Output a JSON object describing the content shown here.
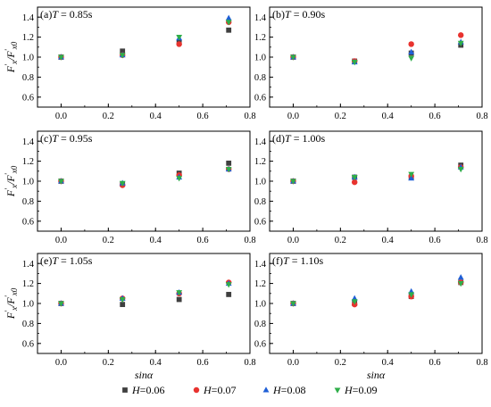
{
  "chart_data": {
    "type": "scatter",
    "panels": [
      {
        "label": "(a)",
        "var": "T",
        "eq": " = 0.85s",
        "series": [
          {
            "name": "H=0.06",
            "y": [
              1.0,
              1.06,
              1.15,
              1.27
            ]
          },
          {
            "name": "H=0.07",
            "y": [
              1.0,
              1.02,
              1.13,
              1.35
            ]
          },
          {
            "name": "H=0.08",
            "y": [
              1.0,
              1.02,
              1.19,
              1.39
            ]
          },
          {
            "name": "H=0.09",
            "y": [
              1.0,
              1.02,
              1.2,
              1.35
            ]
          }
        ]
      },
      {
        "label": "(b)",
        "var": "T",
        "eq": " = 0.90s",
        "series": [
          {
            "name": "H=0.06",
            "y": [
              1.0,
              0.96,
              1.04,
              1.12
            ]
          },
          {
            "name": "H=0.07",
            "y": [
              1.0,
              0.96,
              1.13,
              1.22
            ]
          },
          {
            "name": "H=0.08",
            "y": [
              1.0,
              0.95,
              1.05,
              1.15
            ]
          },
          {
            "name": "H=0.09",
            "y": [
              1.0,
              0.95,
              0.99,
              1.14
            ]
          }
        ]
      },
      {
        "label": "(c)",
        "var": "T",
        "eq": " = 0.95s",
        "series": [
          {
            "name": "H=0.06",
            "y": [
              1.0,
              0.97,
              1.08,
              1.18
            ]
          },
          {
            "name": "H=0.07",
            "y": [
              1.0,
              0.96,
              1.06,
              1.12
            ]
          },
          {
            "name": "H=0.08",
            "y": [
              1.0,
              0.98,
              1.04,
              1.12
            ]
          },
          {
            "name": "H=0.09",
            "y": [
              1.0,
              0.98,
              1.03,
              1.12
            ]
          }
        ]
      },
      {
        "label": "(d)",
        "var": "T",
        "eq": " = 1.00s",
        "series": [
          {
            "name": "H=0.06",
            "y": [
              1.0,
              1.04,
              1.04,
              1.16
            ]
          },
          {
            "name": "H=0.07",
            "y": [
              1.0,
              0.99,
              1.05,
              1.14
            ]
          },
          {
            "name": "H=0.08",
            "y": [
              1.0,
              1.04,
              1.03,
              1.14
            ]
          },
          {
            "name": "H=0.09",
            "y": [
              1.0,
              1.04,
              1.07,
              1.12
            ]
          }
        ]
      },
      {
        "label": "(e)",
        "var": "T",
        "eq": " = 1.05s",
        "series": [
          {
            "name": "H=0.06",
            "y": [
              1.0,
              0.99,
              1.04,
              1.09
            ]
          },
          {
            "name": "H=0.07",
            "y": [
              1.0,
              1.05,
              1.1,
              1.21
            ]
          },
          {
            "name": "H=0.08",
            "y": [
              1.0,
              1.05,
              1.11,
              1.2
            ]
          },
          {
            "name": "H=0.09",
            "y": [
              1.0,
              1.04,
              1.11,
              1.19
            ]
          }
        ]
      },
      {
        "label": "(f)",
        "var": "T",
        "eq": " = 1.10s",
        "series": [
          {
            "name": "H=0.06",
            "y": [
              1.0,
              1.0,
              1.07,
              1.21
            ]
          },
          {
            "name": "H=0.07",
            "y": [
              1.0,
              0.99,
              1.07,
              1.21
            ]
          },
          {
            "name": "H=0.08",
            "y": [
              1.0,
              1.05,
              1.12,
              1.26
            ]
          },
          {
            "name": "H=0.09",
            "y": [
              1.0,
              1.02,
              1.09,
              1.2
            ]
          }
        ]
      }
    ],
    "x": [
      0.0,
      0.26,
      0.5,
      0.71
    ],
    "xlim": [
      -0.1,
      0.8
    ],
    "ylim": [
      0.5,
      1.5
    ],
    "xticks": [
      "0.0",
      "0.2",
      "0.4",
      "0.6",
      "0.8"
    ],
    "yticks": [
      "0.6",
      "0.8",
      "1.0",
      "1.2",
      "1.4"
    ],
    "xlabel": "sinα",
    "ylabel": "F'x/F'x0",
    "ylabel_parts": {
      "F": "F",
      "sub_x": "x",
      "sub_x0": "x0",
      "slash": "/"
    },
    "legend": {
      "placement": "bottom-center",
      "entries": [
        {
          "var": "H",
          "eq": "=0.06",
          "marker": "square",
          "color": "#3f3f3f"
        },
        {
          "var": "H",
          "eq": "=0.07",
          "marker": "circle",
          "color": "#e8332f"
        },
        {
          "var": "H",
          "eq": "=0.08",
          "marker": "triangle-up",
          "color": "#1f5fd6"
        },
        {
          "var": "H",
          "eq": "=0.09",
          "marker": "triangle-down",
          "color": "#2fae4a"
        }
      ]
    }
  }
}
